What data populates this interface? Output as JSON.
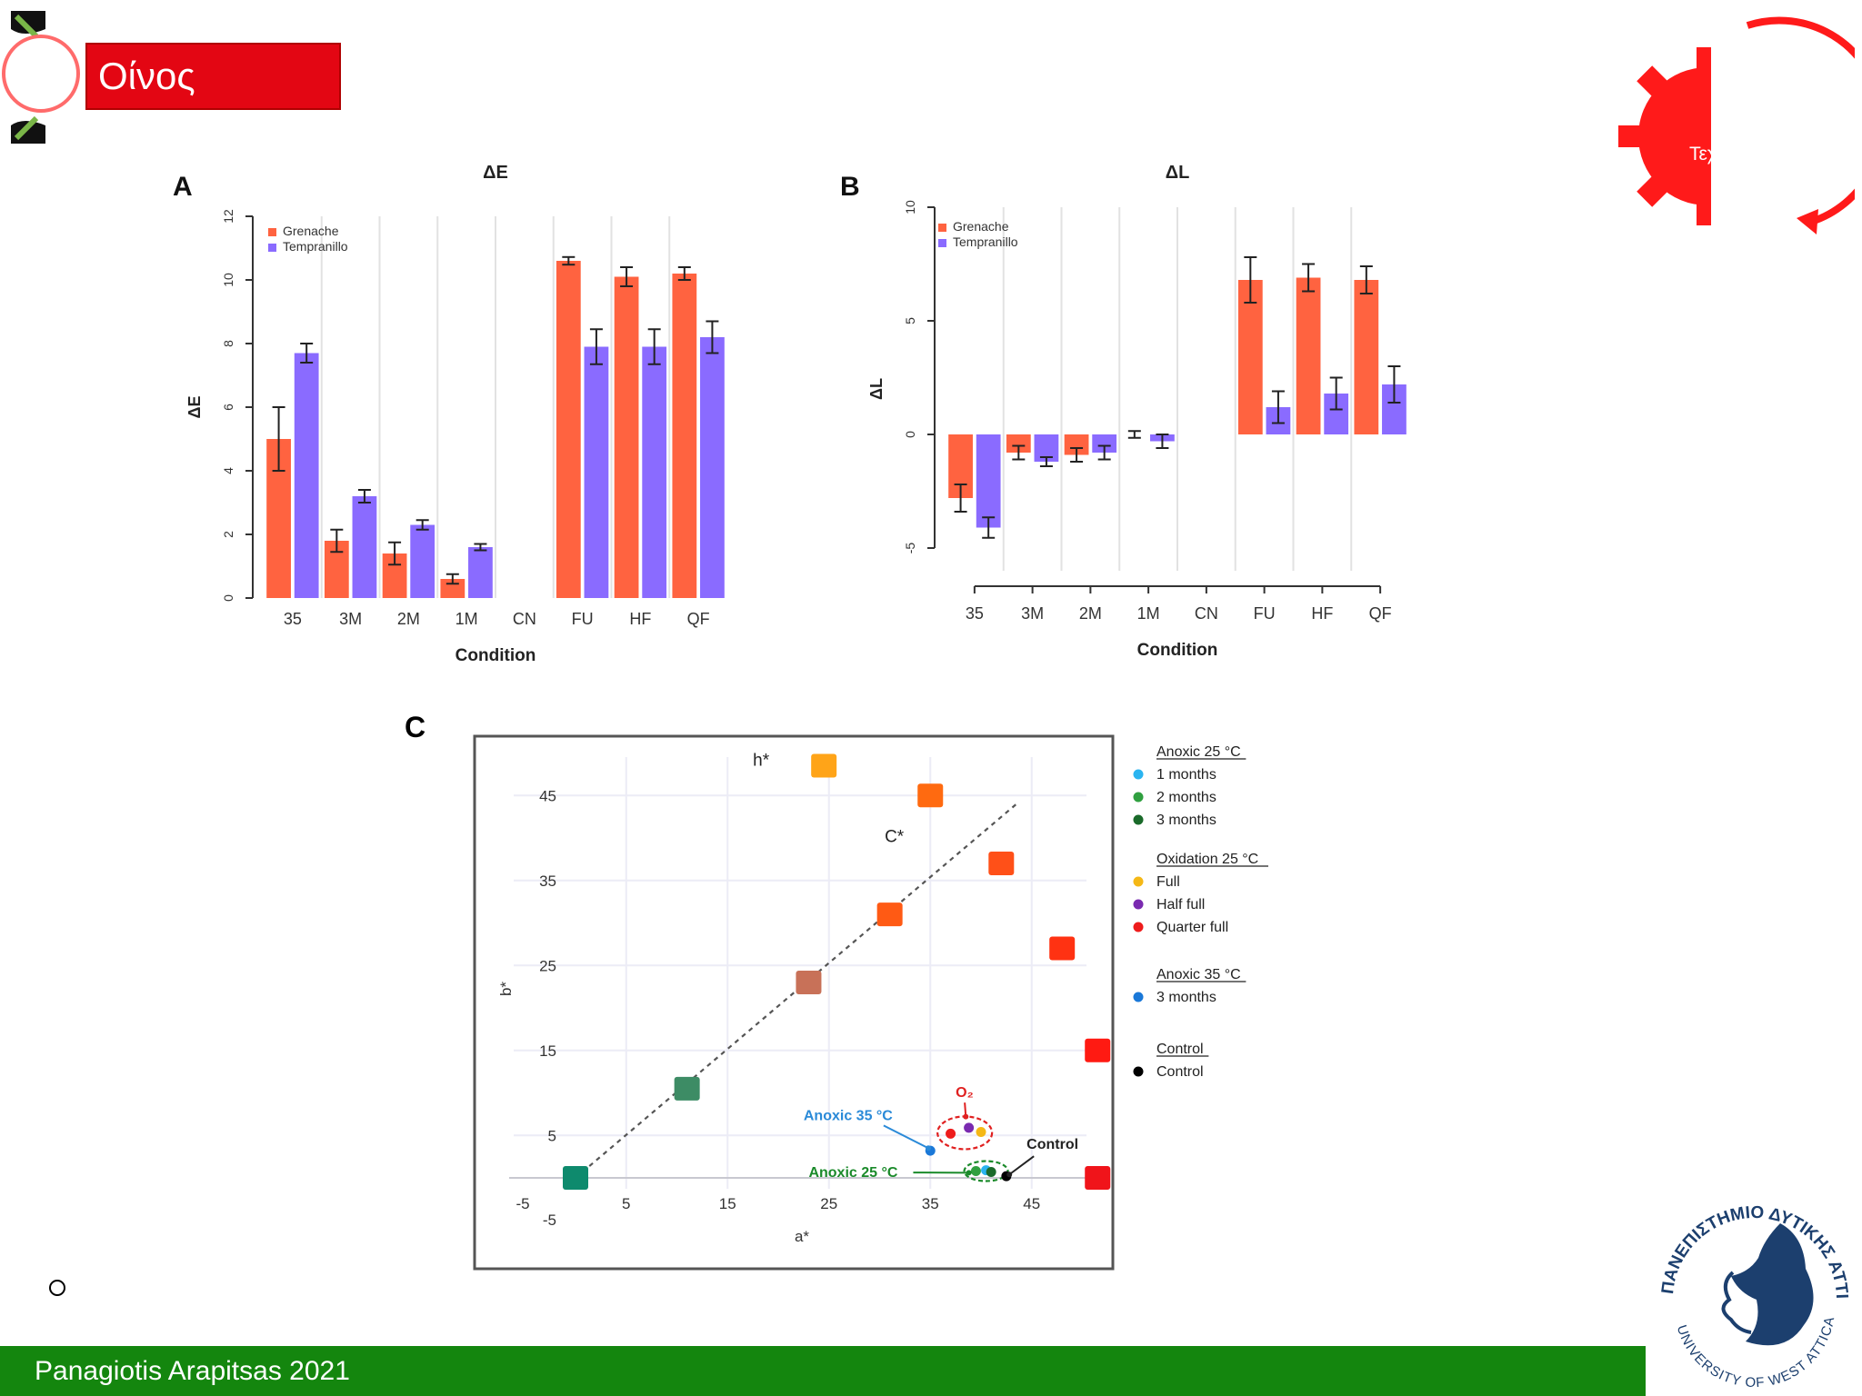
{
  "header": {
    "title": "Οίνος",
    "badge_text": "Τεχνολ"
  },
  "footer": {
    "author": "Panagiotis Arapitsas 2021"
  },
  "university": {
    "name_greek": "ΠΑΝΕΠΙΣΤΗΜΙΟ ΔΥΤΙΚΗΣ ΑΤΤΙΚΗΣ",
    "name_english": "UNIVERSITY OF WEST ATTICA"
  },
  "colors": {
    "red": "#e30613",
    "green": "#14860e",
    "grenache": "#ff6340",
    "tempranillo": "#8a6bff"
  },
  "chart_data": [
    {
      "panel": "A",
      "type": "bar",
      "title": "ΔE",
      "xlabel": "Condition",
      "ylabel": "ΔE",
      "ylim": [
        0,
        12
      ],
      "yticks": [
        "0",
        "2",
        "4",
        "6",
        "8",
        "10",
        "12"
      ],
      "categories": [
        "35",
        "3M",
        "2M",
        "1M",
        "CN",
        "FU",
        "HF",
        "QF"
      ],
      "series": [
        {
          "name": "Grenache",
          "values": [
            5.0,
            1.8,
            1.4,
            0.6,
            0,
            10.6,
            10.1,
            10.2
          ],
          "errors": [
            1.0,
            0.35,
            0.35,
            0.15,
            0,
            0.12,
            0.3,
            0.2
          ]
        },
        {
          "name": "Tempranillo",
          "values": [
            7.7,
            3.2,
            2.3,
            1.6,
            0,
            7.9,
            7.9,
            8.2
          ],
          "errors": [
            0.3,
            0.2,
            0.15,
            0.1,
            0,
            0.55,
            0.55,
            0.5
          ]
        }
      ]
    },
    {
      "panel": "B",
      "type": "bar",
      "title": "ΔL",
      "xlabel": "Condition",
      "ylabel": "ΔL",
      "ylim": [
        -6,
        10
      ],
      "yticks": [
        "-5",
        "0",
        "5",
        "10"
      ],
      "categories": [
        "35",
        "3M",
        "2M",
        "1M",
        "CN",
        "FU",
        "HF",
        "QF"
      ],
      "series": [
        {
          "name": "Grenache",
          "values": [
            -2.8,
            -0.8,
            -0.9,
            0,
            0,
            6.8,
            6.9,
            6.8
          ],
          "errors": [
            0.6,
            0.3,
            0.3,
            0.15,
            0,
            1.0,
            0.6,
            0.6
          ]
        },
        {
          "name": "Tempranillo",
          "values": [
            -4.1,
            -1.2,
            -0.8,
            -0.3,
            0,
            1.2,
            1.8,
            2.2
          ],
          "errors": [
            0.45,
            0.2,
            0.3,
            0.3,
            0,
            0.7,
            0.7,
            0.8
          ]
        }
      ]
    },
    {
      "panel": "C",
      "type": "scatter",
      "xlabel": "a*",
      "ylabel": "b*",
      "xlim": [
        -5,
        52
      ],
      "ylim": [
        -5,
        50
      ],
      "xticks": [
        "-5",
        "5",
        "15",
        "25",
        "35",
        "45"
      ],
      "yticks": [
        "-5",
        "5",
        "15",
        "25",
        "35",
        "45"
      ],
      "axis_names": {
        "hue": "h*",
        "chroma": "C*"
      },
      "color_squares": [
        {
          "a": 0,
          "b": 0,
          "color": "#0e8a6d"
        },
        {
          "a": 11,
          "b": 10.5,
          "color": "#3d8c65"
        },
        {
          "a": 23,
          "b": 23,
          "color": "#c87158"
        },
        {
          "a": 31,
          "b": 31,
          "color": "#ff5a14"
        },
        {
          "a": 24.5,
          "b": 48.5,
          "color": "#ffa418"
        },
        {
          "a": 35,
          "b": 45,
          "color": "#ff6a10"
        },
        {
          "a": 42,
          "b": 37,
          "color": "#ff5018"
        },
        {
          "a": 48,
          "b": 27,
          "color": "#ff3212"
        },
        {
          "a": 51.5,
          "b": 15,
          "color": "#ff1a12"
        },
        {
          "a": 51.5,
          "b": 0,
          "color": "#f0141a"
        }
      ],
      "points": [
        {
          "group": "1 months",
          "a": 40.5,
          "b": 0.9
        },
        {
          "group": "2 months",
          "a": 39.5,
          "b": 0.8
        },
        {
          "group": "3 months",
          "a": 41,
          "b": 0.7
        },
        {
          "group": "Full",
          "a": 40,
          "b": 5.4
        },
        {
          "group": "Half full",
          "a": 38.8,
          "b": 5.9
        },
        {
          "group": "Quarter full",
          "a": 37,
          "b": 5.2
        },
        {
          "group": "3 months (35 °C)",
          "a": 35,
          "b": 3.2
        },
        {
          "group": "Control",
          "a": 42.5,
          "b": 0.2
        }
      ],
      "annotations": [
        {
          "text": "O₂",
          "color": "#e02020"
        },
        {
          "text": "Anoxic 35 °C",
          "color": "#2a8ad8"
        },
        {
          "text": "Anoxic 25 °C",
          "color": "#1a8a2a"
        },
        {
          "text": "Control",
          "color": "#222222"
        }
      ],
      "legend": [
        {
          "heading": "Anoxic 25 °C",
          "items": [
            {
              "label": "1 months",
              "color": "#2ab4f0"
            },
            {
              "label": "2 months",
              "color": "#30a040"
            },
            {
              "label": "3 months",
              "color": "#1a6a2a"
            }
          ]
        },
        {
          "heading": "Oxidation 25 °C",
          "items": [
            {
              "label": "Full",
              "color": "#f5b816"
            },
            {
              "label": "Half full",
              "color": "#7a2ab0"
            },
            {
              "label": "Quarter full",
              "color": "#ee1c1c"
            }
          ]
        },
        {
          "heading": "Anoxic 35 °C",
          "items": [
            {
              "label": "3 months",
              "color": "#1a78d8"
            }
          ]
        },
        {
          "heading": "Control",
          "items": [
            {
              "label": "Control",
              "color": "#000000"
            }
          ]
        }
      ]
    }
  ]
}
